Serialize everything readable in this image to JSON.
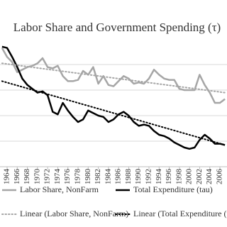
{
  "chart_data": {
    "type": "line",
    "title": "Labor Share and Government Spending (τ)",
    "x": [
      1963,
      1964,
      1965,
      1966,
      1967,
      1968,
      1969,
      1970,
      1971,
      1972,
      1973,
      1974,
      1975,
      1976,
      1977,
      1978,
      1979,
      1980,
      1981,
      1982,
      1983,
      1984,
      1985,
      1986,
      1987,
      1988,
      1989,
      1990,
      1991,
      1992,
      1993,
      1994,
      1995,
      1996,
      1997,
      1998,
      1999,
      2000,
      2001,
      2002,
      2003,
      2004,
      2005,
      2006,
      2007
    ],
    "xlim": [
      1962.6,
      2007.4
    ],
    "xticks": [
      1964,
      1966,
      1968,
      1970,
      1972,
      1974,
      1976,
      1978,
      1980,
      1982,
      1984,
      1986,
      1988,
      1990,
      1992,
      1994,
      1996,
      1998,
      2000,
      2002,
      2004,
      2006
    ],
    "ylim": [
      0,
      100
    ],
    "gridlines": [
      20,
      40,
      60,
      80
    ],
    "grid": true,
    "series": [
      {
        "name": "Labor Share, NonFarm",
        "color": "#a6a6a6",
        "style": "solid",
        "values": [
          93,
          86,
          82,
          74,
          76,
          78,
          79,
          81,
          85,
          78,
          77,
          79,
          71,
          67,
          67,
          68,
          75,
          72,
          78,
          65,
          71,
          64,
          63,
          67,
          71,
          69,
          65,
          66,
          65,
          69,
          76,
          72,
          69,
          68,
          68,
          61,
          60,
          60,
          60,
          72,
          64,
          58,
          50,
          50,
          53
        ]
      },
      {
        "name": "Total Expenditure (tau)",
        "color": "#000000",
        "style": "solid",
        "values": [
          94,
          93,
          86,
          78,
          69,
          64,
          61,
          58,
          59,
          56,
          43,
          41,
          50,
          44,
          39,
          35,
          37,
          44,
          42,
          40,
          39,
          35,
          37,
          41,
          43,
          40,
          35,
          32,
          33,
          32,
          28,
          25,
          24,
          22,
          19,
          17,
          15,
          14,
          15,
          21,
          25,
          22,
          18,
          18,
          17
        ]
      },
      {
        "name": "Linear  (Labor Share, NonFarm)",
        "color": "#a6a6a6",
        "style": "dotted",
        "x": [
          1963,
          2007
        ],
        "values": [
          81,
          58
        ]
      },
      {
        "name": "Linear  (Total Expenditure (tau))",
        "color": "#000000",
        "style": "dotted",
        "x": [
          1963,
          2007
        ],
        "values": [
          67,
          17
        ]
      }
    ]
  }
}
